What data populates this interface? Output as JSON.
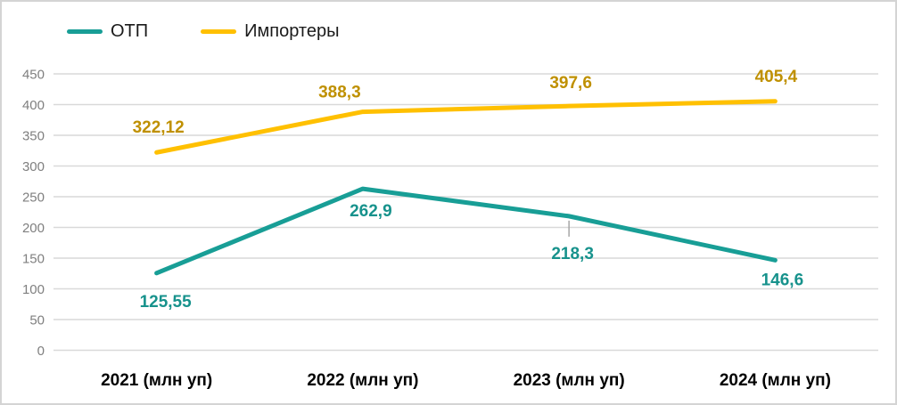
{
  "chart_data": {
    "type": "line",
    "title": "",
    "categories": [
      "2021 (млн уп)",
      "2022 (млн уп)",
      "2023 (млн уп)",
      "2024 (млн уп)"
    ],
    "series": [
      {
        "name": "ОТП",
        "values": [
          125.55,
          262.9,
          218.3,
          146.6
        ],
        "labels": [
          "125,55",
          "262,9",
          "218,3",
          "146,6"
        ],
        "color": "#189e96",
        "label_color": "#17928c",
        "label_side": "below"
      },
      {
        "name": "Импортеры",
        "values": [
          322.12,
          388.3,
          397.6,
          405.4
        ],
        "labels": [
          "322,12",
          "388,3",
          "397,6",
          "405,4"
        ],
        "color": "#ffc000",
        "label_color": "#bf9000",
        "label_side": "above"
      }
    ],
    "yticks": [
      0,
      50,
      100,
      150,
      200,
      250,
      300,
      350,
      400,
      450
    ],
    "ylim": [
      0,
      450
    ],
    "grid": "horizontal",
    "legend_position": "top-left",
    "colors": {
      "gridline": "#d9d9d9",
      "axis_tick_text": "#7f7f7f",
      "category_text": "#000000",
      "leader_line": "#a6a6a6",
      "chart_border": "#d4d4d4",
      "background": "#ffffff"
    }
  }
}
